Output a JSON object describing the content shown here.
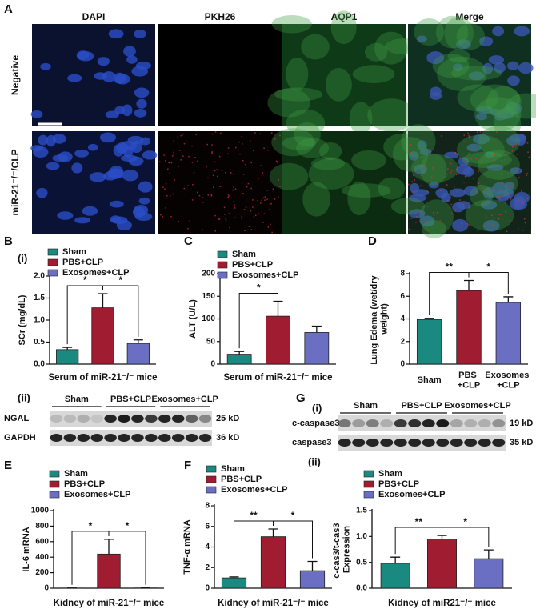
{
  "figure_a": {
    "panel": "A",
    "columns": [
      "DAPI",
      "PKH26",
      "AQP1",
      "Merge"
    ],
    "rows": [
      "Negative",
      "miR-21⁻/⁻/CLP"
    ]
  },
  "blots": [
    {
      "subpanel": "(ii)",
      "groups": [
        "Sham",
        "PBS+CLP",
        "Exosomes+CLP"
      ],
      "bands": [
        {
          "name": "NGAL",
          "size": "25 kD"
        },
        {
          "name": "GAPDH",
          "size": "36 kD"
        }
      ]
    },
    {
      "panel": "G",
      "subpanel": "(i)",
      "groups": [
        "Sham",
        "PBS+CLP",
        "Exosomes+CLP"
      ],
      "bands": [
        {
          "name": "c-caspase3",
          "size": "19 kD"
        },
        {
          "name": "caspase3",
          "size": "35 kD"
        }
      ]
    }
  ],
  "chart_data": [
    {
      "type": "bar",
      "panel": "B",
      "subpanel": "(i)",
      "ylabel": "SCr (mg/dL)",
      "xlabel": "Serum of miR-21⁻/⁻ mice",
      "categories": [
        "Sham",
        "PBS+CLP",
        "Exosomes+CLP"
      ],
      "colors": [
        "#1a8a80",
        "#a01c30",
        "#6a6fc4"
      ],
      "values": [
        0.33,
        1.28,
        0.47
      ],
      "errors": [
        0.05,
        0.32,
        0.08
      ],
      "legend": "top-left",
      "ylim": [
        0,
        2
      ],
      "yticks": [
        {
          "value": 0,
          "label": "0.0"
        },
        {
          "value": 0.5,
          "label": "0.5"
        },
        {
          "value": 1,
          "label": "1.0"
        },
        {
          "value": 1.5,
          "label": "1.5"
        },
        {
          "value": 2,
          "label": "2.0"
        }
      ],
      "annotations": [
        {
          "text": "*",
          "between": [
            0,
            1
          ]
        },
        {
          "text": "*",
          "between": [
            1,
            2
          ]
        }
      ]
    },
    {
      "type": "bar",
      "panel": "C",
      "ylabel": "ALT (U/L)",
      "xlabel": "Serum of miR-21⁻/⁻ mice",
      "categories": [
        "Sham",
        "PBS+CLP",
        "Exosomes+CLP"
      ],
      "colors": [
        "#1a8a80",
        "#a01c30",
        "#6a6fc4"
      ],
      "values": [
        22,
        106,
        70
      ],
      "errors": [
        6,
        33,
        14
      ],
      "legend": "top-left",
      "ylim": [
        0,
        200
      ],
      "yticks": [
        0,
        50,
        100,
        150,
        200
      ],
      "annotations": [
        {
          "text": "*",
          "between": [
            0,
            1
          ]
        }
      ]
    },
    {
      "type": "bar",
      "panel": "D",
      "ylabel": "Lung Edema (wet/dry weight)",
      "categories": [
        "Sham",
        "PBS +CLP",
        "Exosomes +CLP"
      ],
      "colors": [
        "#1a8a80",
        "#a01c30",
        "#6a6fc4"
      ],
      "values": [
        3.95,
        6.5,
        5.45
      ],
      "errors": [
        0.1,
        0.9,
        0.5
      ],
      "ylim": [
        0,
        8
      ],
      "yticks": [
        0,
        2,
        4,
        6,
        8
      ],
      "annotations": [
        {
          "text": "**",
          "between": [
            0,
            1
          ]
        },
        {
          "text": "*",
          "between": [
            1,
            2
          ]
        }
      ]
    },
    {
      "type": "bar",
      "panel": "E",
      "ylabel": "IL-6 mRNA",
      "xlabel": "Kidney of miR-21⁻/⁻ mice",
      "categories": [
        "Sham",
        "PBS+CLP",
        "Exosomes+CLP"
      ],
      "colors": [
        "#1a8a80",
        "#a01c30",
        "#6a6fc4"
      ],
      "values": [
        2,
        440,
        3
      ],
      "errors": [
        0,
        190,
        0
      ],
      "legend": "top-left",
      "ylim": [
        0,
        1000
      ],
      "yticks": [
        0,
        200,
        400,
        600,
        800,
        1000
      ],
      "annotations": [
        {
          "text": "*",
          "between": [
            0,
            1
          ]
        },
        {
          "text": "*",
          "between": [
            1,
            2
          ]
        }
      ]
    },
    {
      "type": "bar",
      "panel": "F",
      "ylabel": "TNF-α mRNA",
      "xlabel": "Kidney of miR-21⁻/⁻ mice",
      "categories": [
        "Sham",
        "PBS+CLP",
        "Exosomes+CLP"
      ],
      "colors": [
        "#1a8a80",
        "#a01c30",
        "#6a6fc4"
      ],
      "values": [
        1.0,
        5.0,
        1.7
      ],
      "errors": [
        0.1,
        0.75,
        0.9
      ],
      "legend": "top-left",
      "ylim": [
        0,
        8
      ],
      "yticks": [
        0,
        2,
        4,
        6,
        8
      ],
      "annotations": [
        {
          "text": "**",
          "between": [
            0,
            1
          ]
        },
        {
          "text": "*",
          "between": [
            1,
            2
          ]
        }
      ]
    },
    {
      "type": "bar",
      "subpanel": "(ii)",
      "ylabel": "c-cas3/t-cas3 Expression",
      "xlabel": "Kidney of miR21⁻/⁻ mice",
      "categories": [
        "Sham",
        "PBS+CLP",
        "Exosomes+CLP"
      ],
      "colors": [
        "#1a8a80",
        "#a01c30",
        "#6a6fc4"
      ],
      "values": [
        0.48,
        0.95,
        0.57
      ],
      "errors": [
        0.12,
        0.07,
        0.17
      ],
      "legend": "top-left",
      "ylim": [
        0,
        1.5
      ],
      "yticks": [
        {
          "value": 0,
          "label": "0.0"
        },
        {
          "value": 0.5,
          "label": "0.5"
        },
        {
          "value": 1,
          "label": "1.0"
        },
        {
          "value": 1.5,
          "label": "1.5"
        }
      ],
      "annotations": [
        {
          "text": "**",
          "between": [
            0,
            1
          ]
        },
        {
          "text": "*",
          "between": [
            1,
            2
          ]
        }
      ]
    }
  ]
}
